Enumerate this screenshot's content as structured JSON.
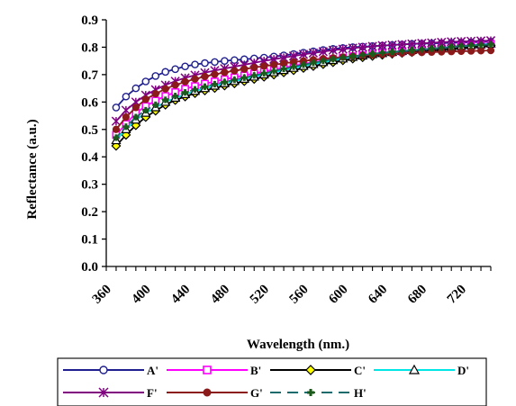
{
  "chart_data": {
    "type": "line",
    "xlabel": "Wavelength (nm.)",
    "ylabel": "Reflectance (a.u.)",
    "xlim": [
      360,
      750
    ],
    "ylim": [
      0.0,
      0.9
    ],
    "x_ticks": [
      "360",
      "400",
      "440",
      "480",
      "520",
      "560",
      "600",
      "640",
      "680",
      "720"
    ],
    "y_ticks": [
      "0.0",
      "0.1",
      "0.2",
      "0.3",
      "0.4",
      "0.5",
      "0.6",
      "0.7",
      "0.8",
      "0.9"
    ],
    "grid": false,
    "legend_position": "bottom",
    "x": [
      370,
      380,
      390,
      400,
      410,
      420,
      430,
      440,
      450,
      460,
      470,
      480,
      490,
      500,
      510,
      520,
      530,
      540,
      550,
      560,
      570,
      580,
      590,
      600,
      610,
      620,
      630,
      640,
      650,
      660,
      670,
      680,
      690,
      700,
      710,
      720,
      730,
      740,
      750
    ],
    "series": [
      {
        "name": "A'",
        "color": "#1f1f8f",
        "marker": "circle-open",
        "dash": "solid",
        "values": [
          0.58,
          0.62,
          0.65,
          0.675,
          0.695,
          0.71,
          0.72,
          0.73,
          0.737,
          0.742,
          0.746,
          0.75,
          0.753,
          0.756,
          0.759,
          0.762,
          0.766,
          0.77,
          0.775,
          0.78,
          0.785,
          0.79,
          0.794,
          0.797,
          0.8,
          0.802,
          0.804,
          0.806,
          0.808,
          0.81,
          0.812,
          0.813,
          0.814,
          0.815,
          0.816,
          0.817,
          0.818,
          0.819,
          0.82
        ]
      },
      {
        "name": "B'",
        "color": "#ff00ff",
        "marker": "square-open",
        "dash": "solid",
        "values": [
          0.48,
          0.52,
          0.56,
          0.585,
          0.605,
          0.622,
          0.636,
          0.648,
          0.658,
          0.667,
          0.675,
          0.683,
          0.69,
          0.697,
          0.704,
          0.711,
          0.718,
          0.725,
          0.732,
          0.739,
          0.745,
          0.751,
          0.757,
          0.762,
          0.767,
          0.771,
          0.775,
          0.779,
          0.782,
          0.785,
          0.788,
          0.791,
          0.794,
          0.797,
          0.8,
          0.803,
          0.806,
          0.809,
          0.812
        ]
      },
      {
        "name": "C'",
        "color": "#000000",
        "marker": "diamond-yellow",
        "dash": "solid",
        "values": [
          0.44,
          0.48,
          0.515,
          0.545,
          0.568,
          0.59,
          0.607,
          0.62,
          0.632,
          0.642,
          0.651,
          0.66,
          0.668,
          0.676,
          0.684,
          0.692,
          0.7,
          0.708,
          0.716,
          0.724,
          0.731,
          0.738,
          0.745,
          0.752,
          0.758,
          0.763,
          0.768,
          0.772,
          0.776,
          0.779,
          0.782,
          0.785,
          0.788,
          0.791,
          0.794,
          0.797,
          0.8,
          0.803,
          0.806
        ]
      },
      {
        "name": "D'",
        "color": "#00e5e5",
        "marker": "triangle-open",
        "dash": "solid",
        "values": [
          0.46,
          0.5,
          0.535,
          0.56,
          0.58,
          0.6,
          0.615,
          0.628,
          0.64,
          0.65,
          0.659,
          0.668,
          0.676,
          0.684,
          0.692,
          0.7,
          0.708,
          0.716,
          0.724,
          0.731,
          0.738,
          0.745,
          0.752,
          0.758,
          0.764,
          0.769,
          0.774,
          0.778,
          0.782,
          0.786,
          0.789,
          0.792,
          0.795,
          0.798,
          0.801,
          0.804,
          0.807,
          0.81,
          0.813
        ]
      },
      {
        "name": "F'",
        "color": "#800080",
        "marker": "asterisk",
        "dash": "solid",
        "values": [
          0.53,
          0.57,
          0.6,
          0.625,
          0.645,
          0.662,
          0.676,
          0.688,
          0.698,
          0.707,
          0.715,
          0.722,
          0.729,
          0.736,
          0.743,
          0.75,
          0.756,
          0.762,
          0.768,
          0.774,
          0.779,
          0.784,
          0.789,
          0.793,
          0.797,
          0.8,
          0.803,
          0.806,
          0.808,
          0.81,
          0.812,
          0.814,
          0.816,
          0.818,
          0.82,
          0.821,
          0.822,
          0.823,
          0.824
        ]
      },
      {
        "name": "G'",
        "color": "#8b1a1a",
        "marker": "circle-filled",
        "dash": "solid",
        "values": [
          0.5,
          0.545,
          0.58,
          0.61,
          0.63,
          0.648,
          0.662,
          0.674,
          0.684,
          0.693,
          0.701,
          0.708,
          0.714,
          0.72,
          0.726,
          0.731,
          0.736,
          0.741,
          0.746,
          0.75,
          0.754,
          0.758,
          0.761,
          0.764,
          0.767,
          0.77,
          0.772,
          0.774,
          0.776,
          0.778,
          0.78,
          0.781,
          0.782,
          0.783,
          0.784,
          0.785,
          0.786,
          0.787,
          0.788
        ]
      },
      {
        "name": "H'",
        "color": "#1a6b6b",
        "marker": "plus-filled",
        "dash": "dashed",
        "values": [
          0.47,
          0.51,
          0.545,
          0.57,
          0.59,
          0.608,
          0.622,
          0.635,
          0.646,
          0.656,
          0.665,
          0.673,
          0.681,
          0.689,
          0.697,
          0.705,
          0.713,
          0.721,
          0.729,
          0.736,
          0.743,
          0.75,
          0.756,
          0.762,
          0.767,
          0.772,
          0.776,
          0.78,
          0.783,
          0.786,
          0.789,
          0.792,
          0.795,
          0.798,
          0.801,
          0.804,
          0.806,
          0.808,
          0.81
        ]
      }
    ]
  }
}
